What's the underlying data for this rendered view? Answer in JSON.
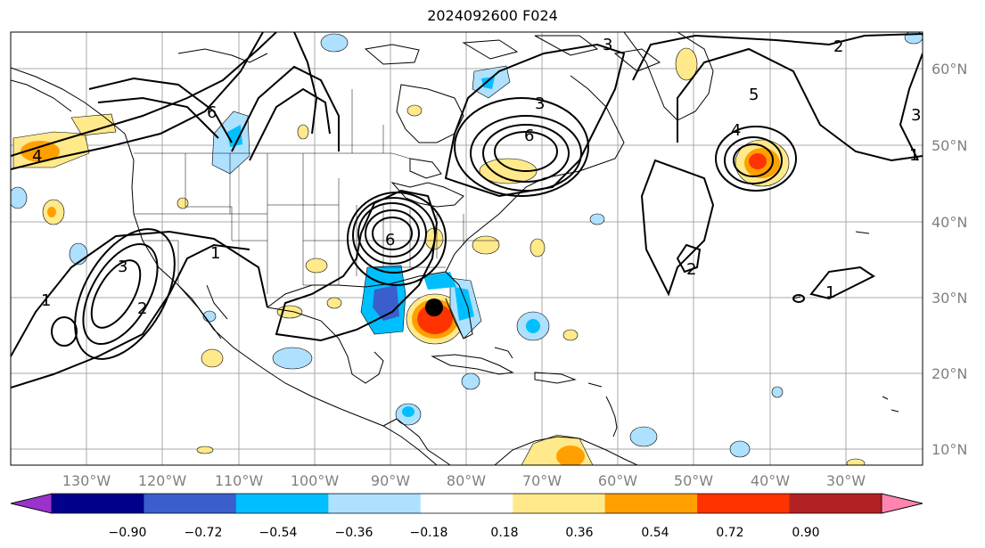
{
  "title": "2024092600 F024",
  "latitude_labels": [
    "60°N",
    "50°N",
    "40°N",
    "30°N",
    "20°N",
    "10°N"
  ],
  "longitude_labels": [
    "130°W",
    "120°W",
    "110°W",
    "100°W",
    "90°W",
    "80°W",
    "70°W",
    "60°W",
    "50°W",
    "40°W",
    "30°W"
  ],
  "colorbar": {
    "ticks": [
      "−0.90",
      "−0.72",
      "−0.54",
      "−0.36",
      "−0.18",
      "0.18",
      "0.36",
      "0.54",
      "0.72",
      "0.90"
    ],
    "colors": [
      "#9933cc",
      "#00008b",
      "#3a5fcd",
      "#00bfff",
      "#aee0ff",
      "#ffffff",
      "#ffe98a",
      "#ffa000",
      "#ff3300",
      "#b22222",
      "#ff85b0"
    ]
  },
  "colors": {
    "contour": "#000000",
    "grid": "#a0a0a0",
    "coast": "#000000"
  },
  "contour_labels": [
    "1",
    "2",
    "3",
    "4",
    "5",
    "6"
  ]
}
